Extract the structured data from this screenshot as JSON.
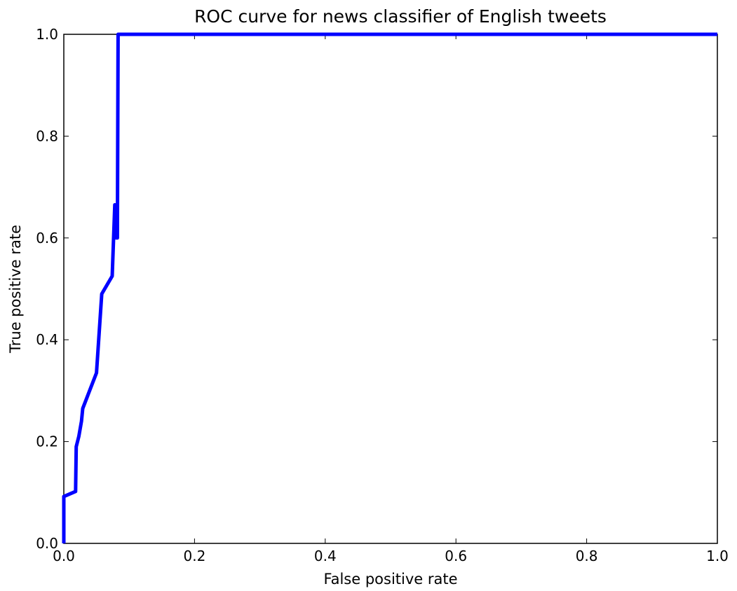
{
  "chart_data": {
    "type": "line",
    "title": "ROC curve for news classifier of English tweets",
    "xlabel": "False positive rate",
    "ylabel": "True positive rate",
    "xlim": [
      0,
      1
    ],
    "ylim": [
      0,
      1
    ],
    "x_ticks": [
      "0.0",
      "0.2",
      "0.4",
      "0.6",
      "0.8",
      "1.0"
    ],
    "y_ticks": [
      "0.0",
      "0.2",
      "0.4",
      "0.6",
      "0.8",
      "1.0"
    ],
    "grid": false,
    "legend": "none",
    "series": [
      {
        "color": "#0000ff",
        "x": [
          0.0,
          0.0,
          0.018,
          0.019,
          0.023,
          0.027,
          0.029,
          0.05,
          0.058,
          0.074,
          0.078,
          0.08,
          0.082,
          0.083,
          1.0
        ],
        "y": [
          0.0,
          0.092,
          0.102,
          0.19,
          0.21,
          0.24,
          0.265,
          0.335,
          0.49,
          0.525,
          0.665,
          0.6,
          0.6,
          1.0,
          1.0
        ]
      }
    ]
  }
}
